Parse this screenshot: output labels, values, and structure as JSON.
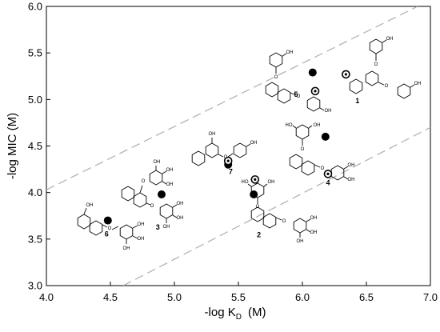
{
  "chart_data": {
    "type": "scatter",
    "title": "",
    "xlabel": "-log K",
    "xlabel_sub": "D",
    "xlabel_unit": "(M)",
    "ylabel": "-log MIC (M)",
    "xlim": [
      4.0,
      7.0
    ],
    "ylim": [
      3.0,
      6.0
    ],
    "xticks": [
      "4.0",
      "4.5",
      "5.0",
      "5.5",
      "6.0",
      "6.5",
      "7.0"
    ],
    "yticks": [
      "3.0",
      "3.5",
      "4.0",
      "4.5",
      "5.0",
      "5.5",
      "6.0"
    ],
    "grid": false,
    "legend": "none",
    "series": [
      {
        "marker": "filled-circle",
        "points": [
          {
            "x": 4.48,
            "y": 3.7
          },
          {
            "x": 4.9,
            "y": 3.98
          },
          {
            "x": 5.42,
            "y": 4.3
          },
          {
            "x": 5.62,
            "y": 3.98
          },
          {
            "x": 6.08,
            "y": 5.29
          },
          {
            "x": 6.18,
            "y": 4.6
          }
        ]
      },
      {
        "marker": "dotted-circle",
        "points": [
          {
            "x": 5.63,
            "y": 4.14
          },
          {
            "x": 5.42,
            "y": 4.34
          },
          {
            "x": 6.1,
            "y": 5.09
          },
          {
            "x": 6.2,
            "y": 4.2
          },
          {
            "x": 6.34,
            "y": 5.27
          }
        ]
      }
    ],
    "reference_lines": [
      {
        "x1": 4.0,
        "y1": 4.03,
        "x2": 6.9,
        "y2": 6.0,
        "style": "dashed"
      },
      {
        "x1": 4.6,
        "y1": 3.0,
        "x2": 7.0,
        "y2": 4.7,
        "style": "dashed"
      }
    ],
    "compound_labels": [
      {
        "text": "1",
        "x": 6.43,
        "y": 4.96
      },
      {
        "text": "2",
        "x": 5.66,
        "y": 3.52
      },
      {
        "text": "3",
        "x": 4.87,
        "y": 3.6
      },
      {
        "text": "4",
        "x": 6.2,
        "y": 4.08
      },
      {
        "text": "5",
        "x": 5.95,
        "y": 5.03
      },
      {
        "text": "6",
        "x": 4.47,
        "y": 3.53
      },
      {
        "text": "7",
        "x": 5.44,
        "y": 4.2
      }
    ],
    "structure_labels": {
      "hydroxyl": "OH",
      "hydroxyl_left": "HO",
      "oxygen": "O"
    }
  }
}
